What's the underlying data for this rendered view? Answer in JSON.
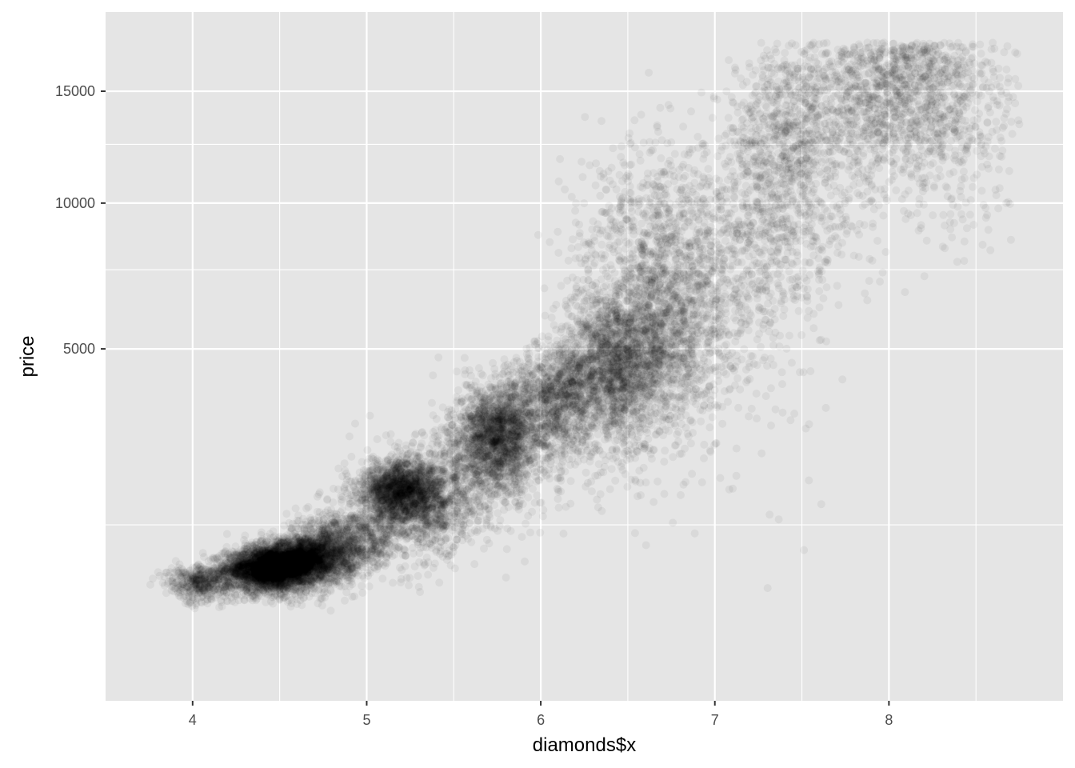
{
  "chart_data": {
    "type": "scatter",
    "title": "",
    "xlabel": "diamonds$x",
    "ylabel": "price",
    "xlim": [
      3.5,
      9.0
    ],
    "ylim": [
      0,
      17500
    ],
    "y_scale": "sqrt",
    "x_ticks": [
      4,
      5,
      6,
      7,
      8
    ],
    "x_tick_labels": [
      "4",
      "5",
      "6",
      "7",
      "8"
    ],
    "x_minor_ticks": [
      4.5,
      5.5,
      6.5,
      7.5,
      8.5
    ],
    "y_ticks": [
      5000,
      10000,
      15000
    ],
    "y_tick_labels": [
      "5000",
      "10000",
      "15000"
    ],
    "y_minor_ticks": [
      1250,
      7500,
      12500
    ],
    "grid": true,
    "legend": "none",
    "point_color": "#000000",
    "point_alpha": 0.05,
    "panel_color": "#e5e5e5",
    "point_clusters": [
      {
        "x": 4.45,
        "y": 700,
        "sx": 0.13,
        "sy": 110,
        "n": 3200
      },
      {
        "x": 4.65,
        "y": 820,
        "sx": 0.14,
        "sy": 140,
        "n": 2200
      },
      {
        "x": 4.05,
        "y": 560,
        "sx": 0.1,
        "sy": 90,
        "n": 500
      },
      {
        "x": 4.9,
        "y": 1050,
        "sx": 0.15,
        "sy": 200,
        "n": 800
      },
      {
        "x": 5.2,
        "y": 1800,
        "sx": 0.12,
        "sy": 250,
        "n": 1600
      },
      {
        "x": 5.3,
        "y": 1450,
        "sx": 0.18,
        "sy": 300,
        "n": 900
      },
      {
        "x": 5.5,
        "y": 2100,
        "sx": 0.2,
        "sy": 500,
        "n": 500
      },
      {
        "x": 5.75,
        "y": 2800,
        "sx": 0.12,
        "sy": 550,
        "n": 1800
      },
      {
        "x": 6.0,
        "y": 3300,
        "sx": 0.17,
        "sy": 700,
        "n": 800
      },
      {
        "x": 6.15,
        "y": 3900,
        "sx": 0.12,
        "sy": 700,
        "n": 700
      },
      {
        "x": 6.45,
        "y": 4600,
        "sx": 0.15,
        "sy": 1000,
        "n": 1900
      },
      {
        "x": 6.75,
        "y": 5600,
        "sx": 0.18,
        "sy": 1500,
        "n": 1100
      },
      {
        "x": 6.6,
        "y": 8000,
        "sx": 0.22,
        "sy": 2200,
        "n": 700
      },
      {
        "x": 7.05,
        "y": 8500,
        "sx": 0.25,
        "sy": 2800,
        "n": 700
      },
      {
        "x": 7.4,
        "y": 11500,
        "sx": 0.15,
        "sy": 3000,
        "n": 900
      },
      {
        "x": 7.8,
        "y": 13500,
        "sx": 0.25,
        "sy": 3000,
        "n": 700
      },
      {
        "x": 8.1,
        "y": 15300,
        "sx": 0.22,
        "sy": 1900,
        "n": 1000
      },
      {
        "x": 8.45,
        "y": 14000,
        "sx": 0.2,
        "sy": 2800,
        "n": 300
      }
    ]
  }
}
